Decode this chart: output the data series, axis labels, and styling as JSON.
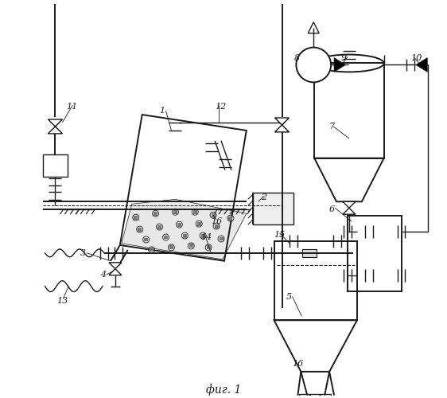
{
  "title": "фиг. 1",
  "bg_color": "#ffffff",
  "line_color": "#1a1a1a",
  "fig_width": 5.62,
  "fig_height": 5.0,
  "dpi": 100
}
